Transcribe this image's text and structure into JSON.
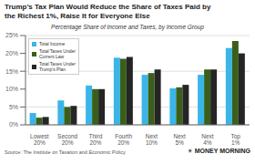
{
  "chart_data": {
    "type": "bar",
    "title": "Trump’s Tax Plan Would Reduce the Share of Taxes Paid by\nthe Richest 1%, Raise It for Everyone Else",
    "subtitle": "Percentage Share of Income and Taxes, by Income Group",
    "categories": [
      "Lowest\n20%",
      "Second\n20%",
      "Third\n20%",
      "Fourth\n20%",
      "Next\n10%",
      "Next\n5%",
      "Next\n4%",
      "Top\n1%"
    ],
    "series": [
      {
        "name": "Total Income",
        "color": "#3ab5e8",
        "values": [
          3.3,
          6.8,
          11.0,
          18.8,
          14.0,
          10.2,
          14.0,
          21.5
        ]
      },
      {
        "name": "Total Taxes Under\nCurrent Law",
        "color": "#3a5f1a",
        "values": [
          2.0,
          5.0,
          10.0,
          18.5,
          14.5,
          10.5,
          15.5,
          23.5
        ]
      },
      {
        "name": "Total Taxes Under\nTrump's Plan",
        "color": "#252525",
        "values": [
          2.2,
          5.3,
          10.0,
          19.0,
          15.5,
          11.2,
          15.5,
          20.0
        ]
      }
    ],
    "ylim": [
      0,
      25
    ],
    "yticks": [
      {
        "value": 0,
        "label": "0%"
      },
      {
        "value": 5,
        "label": "5%"
      },
      {
        "value": 10,
        "label": "10%"
      },
      {
        "value": 15,
        "label": "15%"
      },
      {
        "value": 20,
        "label": "20%"
      },
      {
        "value": 25,
        "label": "25%"
      }
    ],
    "grid": true,
    "legend": "upper left",
    "annotations": [
      "Source: The Institute on Taxation and Economic Policy",
      "☀ MONEY MORNING"
    ]
  }
}
